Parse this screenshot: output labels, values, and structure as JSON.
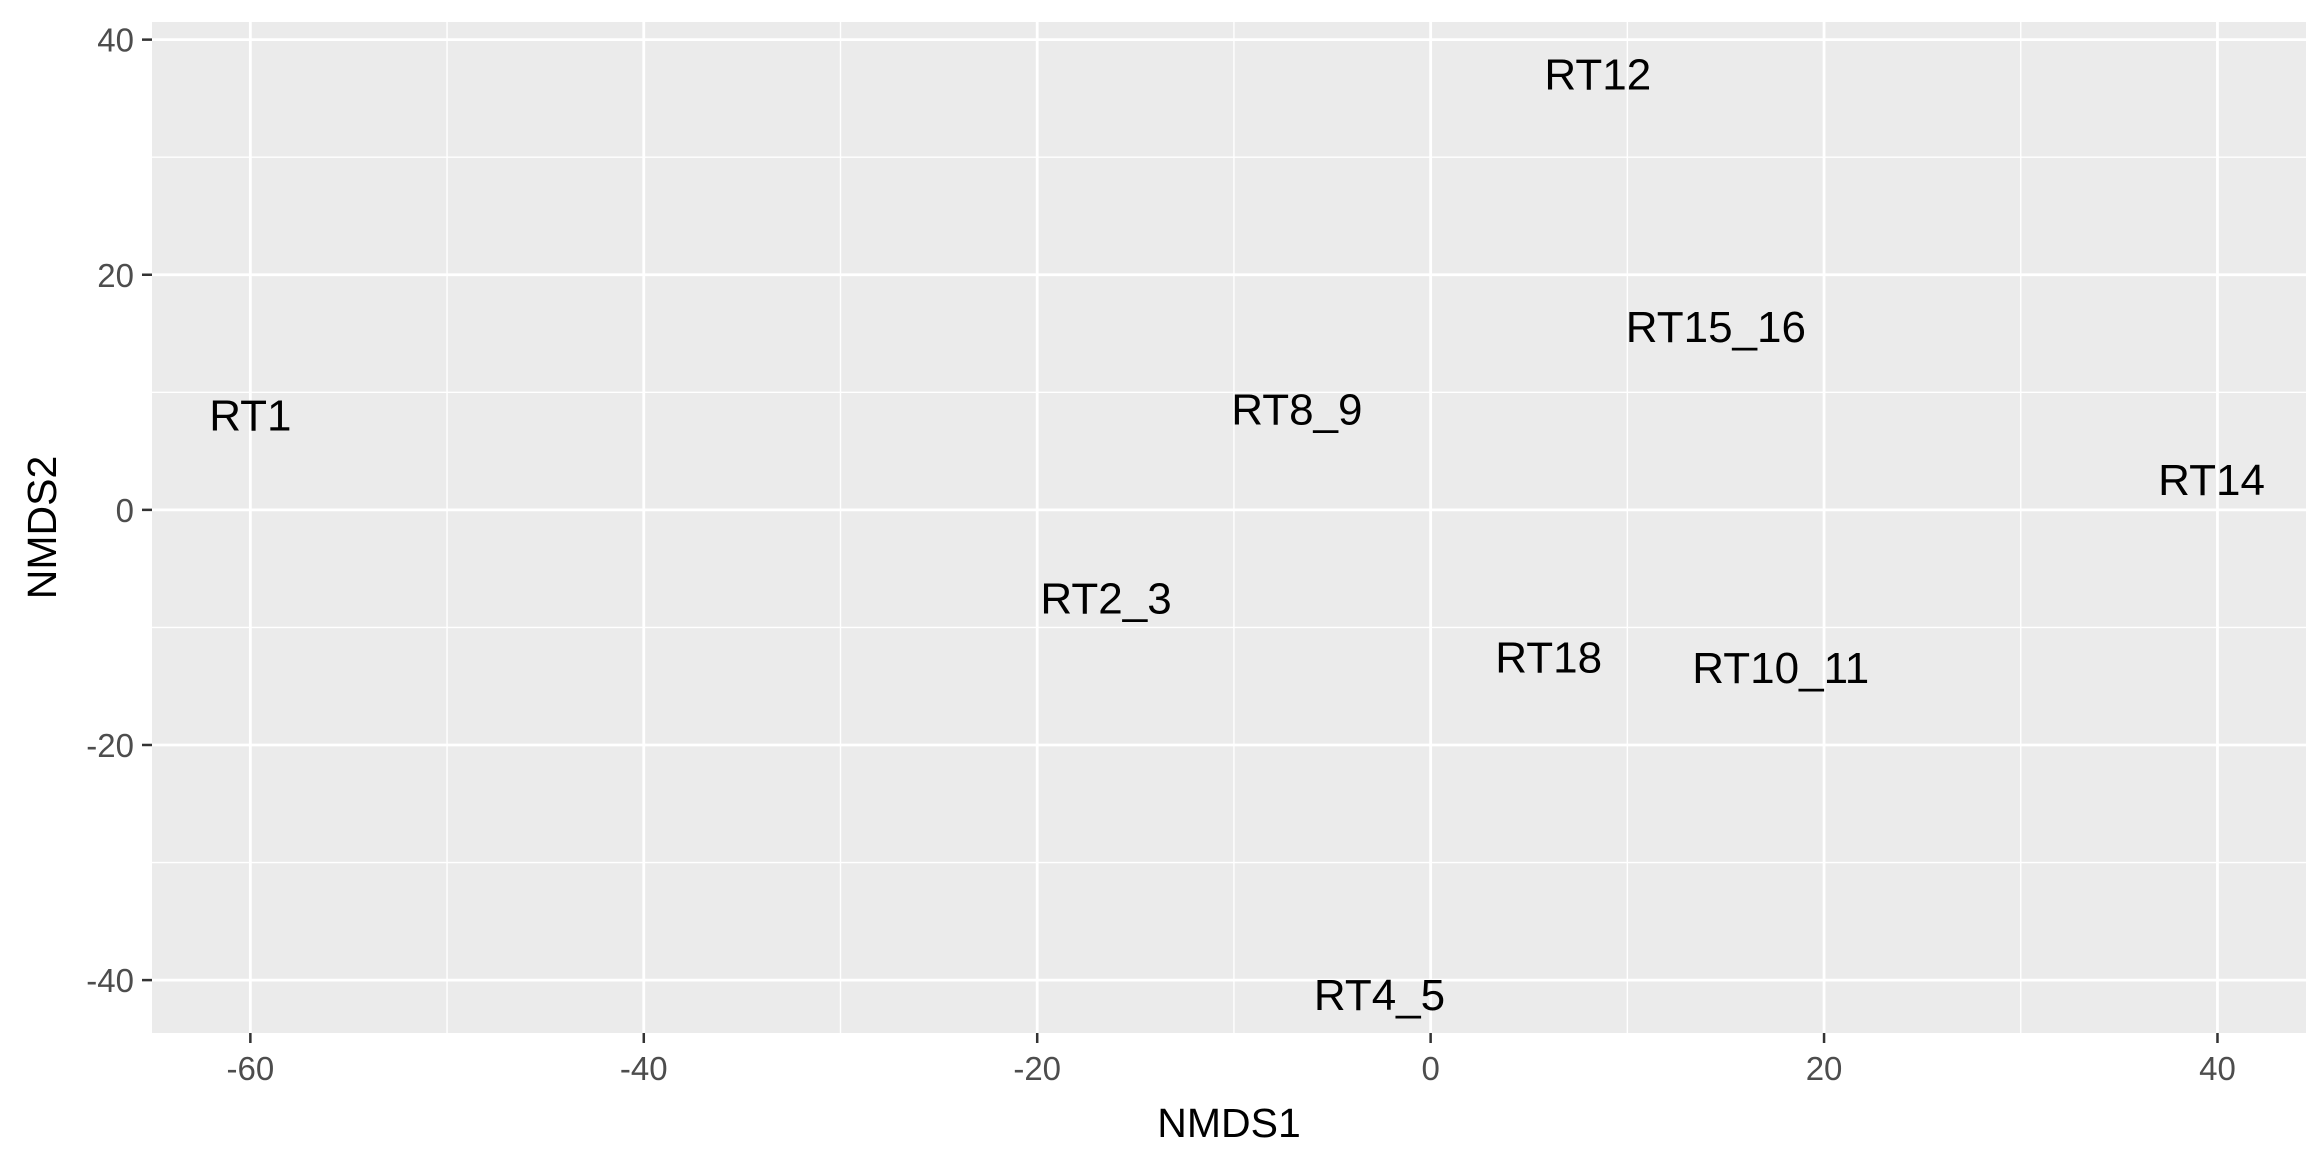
{
  "chart_data": {
    "type": "scatter",
    "title": "",
    "xlabel": "NMDS1",
    "ylabel": "NMDS2",
    "xlim": [
      -65,
      44.5
    ],
    "ylim": [
      -44.5,
      41.5
    ],
    "x_ticks": [
      -60,
      -40,
      -20,
      0,
      20,
      40
    ],
    "y_ticks": [
      -40,
      -20,
      0,
      20,
      40
    ],
    "grid": true,
    "legend": "none",
    "colors": {
      "panel": "#ebebeb",
      "grid": "#ffffff",
      "tick_text": "#4d4d4d",
      "tick_mark": "#333333",
      "text": "#000000"
    },
    "points": [
      {
        "label": "RT1",
        "x": -60,
        "y": 8
      },
      {
        "label": "RT12",
        "x": 8.5,
        "y": 37
      },
      {
        "label": "RT15_16",
        "x": 14.5,
        "y": 15.5
      },
      {
        "label": "RT8_9",
        "x": -6.8,
        "y": 8.5
      },
      {
        "label": "RT14",
        "x": 39.7,
        "y": 2.5
      },
      {
        "label": "RT2_3",
        "x": -16.5,
        "y": -7.6
      },
      {
        "label": "RT18",
        "x": 6,
        "y": -12.6
      },
      {
        "label": "RT10_11",
        "x": 17.8,
        "y": -13.5
      },
      {
        "label": "RT4_5",
        "x": -2.6,
        "y": -41.3
      }
    ]
  }
}
